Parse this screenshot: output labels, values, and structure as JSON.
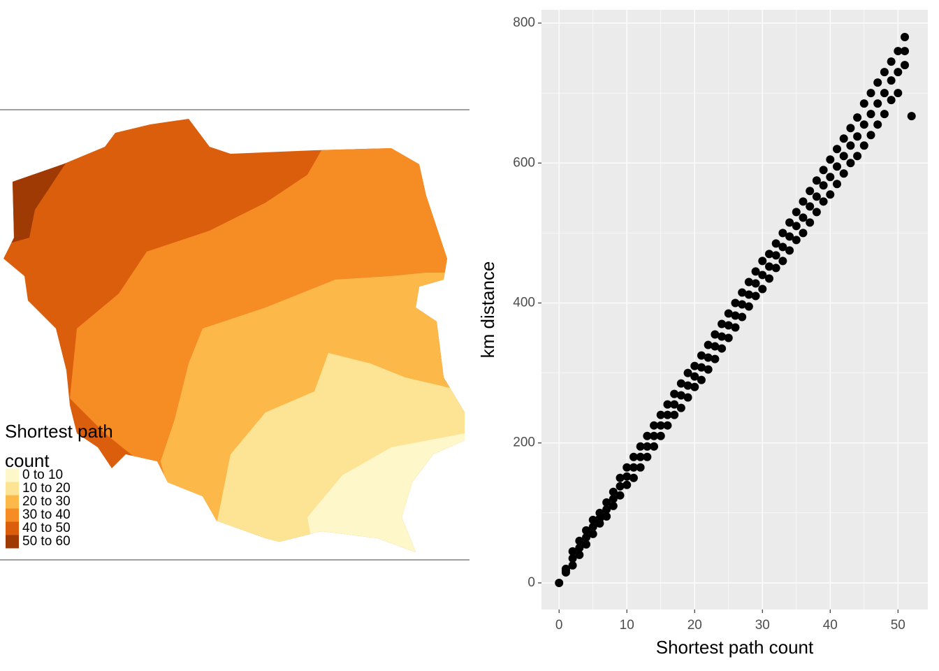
{
  "chart_data": [
    {
      "type": "map",
      "legend_title": "Shortest path count",
      "categories": [
        "0 to 10",
        "10 to 20",
        "20 to 30",
        "30 to 40",
        "40 to 50",
        "50 to 60"
      ],
      "colors": [
        "#fef7ca",
        "#fde494",
        "#fdb84a",
        "#f68c24",
        "#da5e0c",
        "#a03a04"
      ]
    },
    {
      "type": "scatter",
      "xlabel": "Shortest path count",
      "ylabel": "km distance",
      "color": "#000000",
      "grid": true,
      "xlim": [
        -2.6,
        54.4
      ],
      "ylim": [
        -38,
        819
      ],
      "xticks": [
        0,
        10,
        20,
        30,
        40,
        50
      ],
      "yticks": [
        0,
        200,
        400,
        600,
        800
      ],
      "x": [
        0,
        1,
        1,
        1,
        2,
        2,
        2,
        3,
        3,
        3,
        4,
        4,
        4,
        5,
        5,
        5,
        6,
        6,
        6,
        7,
        7,
        7,
        8,
        8,
        8,
        9,
        9,
        9,
        10,
        10,
        10,
        11,
        11,
        11,
        12,
        12,
        12,
        13,
        13,
        13,
        14,
        14,
        14,
        15,
        15,
        15,
        16,
        16,
        16,
        17,
        17,
        17,
        18,
        18,
        18,
        19,
        19,
        19,
        20,
        20,
        20,
        21,
        21,
        21,
        22,
        22,
        22,
        23,
        23,
        23,
        24,
        24,
        24,
        25,
        25,
        25,
        26,
        26,
        26,
        27,
        27,
        27,
        28,
        28,
        28,
        29,
        29,
        29,
        30,
        30,
        30,
        31,
        31,
        31,
        32,
        32,
        32,
        33,
        33,
        33,
        34,
        34,
        34,
        35,
        35,
        35,
        36,
        36,
        36,
        37,
        37,
        37,
        38,
        38,
        38,
        39,
        39,
        39,
        40,
        40,
        40,
        41,
        41,
        41,
        42,
        42,
        42,
        43,
        43,
        43,
        44,
        44,
        44,
        45,
        45,
        45,
        46,
        46,
        46,
        47,
        47,
        47,
        48,
        48,
        48,
        49,
        49,
        49,
        50,
        50,
        50,
        51,
        51,
        51,
        52
      ],
      "y": [
        0,
        15,
        18,
        20,
        25,
        35,
        45,
        40,
        50,
        60,
        55,
        65,
        75,
        70,
        80,
        90,
        85,
        92,
        100,
        95,
        105,
        115,
        110,
        120,
        130,
        125,
        138,
        150,
        140,
        152,
        165,
        150,
        165,
        180,
        165,
        180,
        195,
        180,
        195,
        210,
        195,
        210,
        225,
        210,
        225,
        240,
        225,
        240,
        255,
        240,
        255,
        270,
        250,
        268,
        285,
        265,
        282,
        300,
        280,
        295,
        310,
        290,
        308,
        325,
        305,
        322,
        340,
        320,
        338,
        355,
        335,
        352,
        370,
        350,
        368,
        385,
        365,
        382,
        400,
        380,
        398,
        415,
        395,
        412,
        430,
        410,
        428,
        445,
        420,
        440,
        460,
        435,
        452,
        470,
        450,
        468,
        485,
        460,
        480,
        500,
        475,
        495,
        515,
        490,
        510,
        530,
        500,
        522,
        545,
        515,
        538,
        560,
        530,
        552,
        575,
        545,
        568,
        590,
        555,
        580,
        605,
        570,
        595,
        620,
        585,
        610,
        635,
        600,
        625,
        650,
        610,
        638,
        665,
        625,
        655,
        685,
        640,
        670,
        700,
        655,
        685,
        715,
        670,
        700,
        730,
        690,
        718,
        745,
        700,
        730,
        760,
        740,
        760,
        780,
        667
      ]
    }
  ]
}
